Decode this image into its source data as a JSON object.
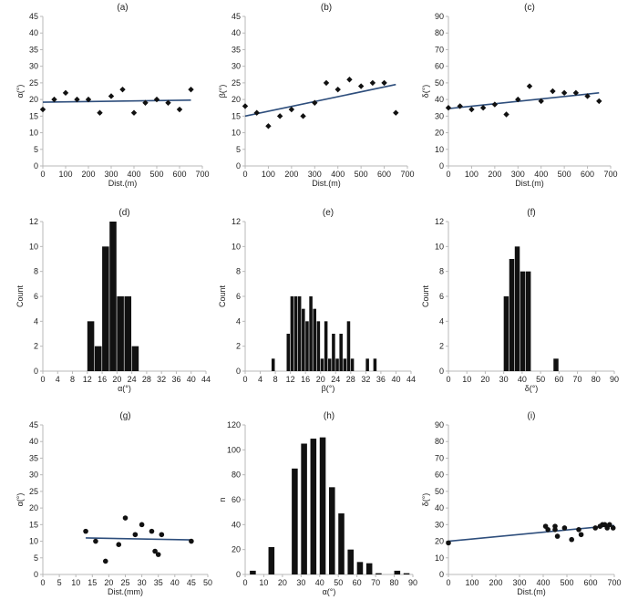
{
  "chart_data": [
    {
      "id": "a",
      "type": "scatter",
      "title": "(a)",
      "xlabel": "Dist.(m)",
      "ylabel": "α(°)",
      "xlim": [
        0,
        700
      ],
      "ylim": [
        0,
        45
      ],
      "xticks": [
        "0",
        "100",
        "200",
        "300",
        "400",
        "500",
        "600",
        "700"
      ],
      "yticks": [
        "0",
        "5",
        "10",
        "15",
        "20",
        "25",
        "30",
        "35",
        "40",
        "45"
      ],
      "marker": "diamond",
      "x": [
        0,
        50,
        100,
        150,
        200,
        250,
        300,
        350,
        400,
        450,
        500,
        550,
        600,
        650
      ],
      "y": [
        17,
        20,
        22,
        20,
        20,
        16,
        21,
        23,
        16,
        19,
        20,
        19,
        17,
        23
      ],
      "trend": [
        [
          0,
          19.2
        ],
        [
          650,
          19.8
        ]
      ]
    },
    {
      "id": "b",
      "type": "scatter",
      "title": "(b)",
      "xlabel": "Dist.(m)",
      "ylabel": "β(°)",
      "xlim": [
        0,
        700
      ],
      "ylim": [
        0,
        45
      ],
      "xticks": [
        "0",
        "100",
        "200",
        "300",
        "400",
        "500",
        "600",
        "700"
      ],
      "yticks": [
        "0",
        "5",
        "10",
        "15",
        "20",
        "25",
        "30",
        "35",
        "40",
        "45"
      ],
      "marker": "diamond",
      "x": [
        0,
        50,
        100,
        150,
        200,
        250,
        300,
        350,
        400,
        450,
        500,
        550,
        600,
        650
      ],
      "y": [
        18,
        16,
        12,
        15,
        17,
        15,
        19,
        25,
        23,
        26,
        24,
        25,
        25,
        16
      ],
      "trend": [
        [
          0,
          15
        ],
        [
          650,
          24.5
        ]
      ]
    },
    {
      "id": "c",
      "type": "scatter",
      "title": "(c)",
      "xlabel": "Dist.(m)",
      "ylabel": "δ(°)",
      "xlim": [
        0,
        700
      ],
      "ylim": [
        0,
        90
      ],
      "xticks": [
        "0",
        "100",
        "200",
        "300",
        "400",
        "500",
        "600",
        "700"
      ],
      "yticks": [
        "0",
        "10",
        "20",
        "30",
        "40",
        "50",
        "60",
        "70",
        "80",
        "90"
      ],
      "marker": "diamond",
      "x": [
        0,
        50,
        100,
        150,
        200,
        250,
        300,
        350,
        400,
        450,
        500,
        550,
        600,
        650
      ],
      "y": [
        35,
        36,
        34,
        35,
        37,
        31,
        40,
        48,
        39,
        45,
        44,
        44,
        42,
        39
      ],
      "trend": [
        [
          0,
          34.5
        ],
        [
          650,
          44
        ]
      ]
    },
    {
      "id": "d",
      "type": "bar",
      "title": "(d)",
      "xlabel": "α(°)",
      "ylabel": "Count",
      "xlim": [
        0,
        44
      ],
      "ylim": [
        0,
        12
      ],
      "xticks": [
        "0",
        "4",
        "8",
        "12",
        "16",
        "20",
        "24",
        "28",
        "32",
        "36",
        "40",
        "44"
      ],
      "yticks": [
        "0",
        "2",
        "4",
        "6",
        "8",
        "10",
        "12"
      ],
      "bin_width": 2,
      "bin_starts": [
        12,
        14,
        16,
        18,
        20,
        22,
        24
      ],
      "values": [
        4,
        2,
        10,
        12,
        6,
        6,
        2
      ]
    },
    {
      "id": "e",
      "type": "bar",
      "title": "(e)",
      "xlabel": "β(°)",
      "ylabel": "Count",
      "xlim": [
        0,
        44
      ],
      "ylim": [
        0,
        12
      ],
      "xticks": [
        "0",
        "4",
        "8",
        "12",
        "16",
        "20",
        "24",
        "28",
        "32",
        "36",
        "40",
        "44"
      ],
      "yticks": [
        "0",
        "2",
        "4",
        "6",
        "8",
        "10",
        "12"
      ],
      "bin_width": 1,
      "bin_starts": [
        7,
        11,
        12,
        13,
        14,
        15,
        16,
        17,
        18,
        19,
        20,
        21,
        22,
        23,
        24,
        25,
        26,
        27,
        28,
        29,
        32,
        33,
        34
      ],
      "values": [
        1,
        3,
        6,
        6,
        6,
        5,
        4,
        6,
        5,
        4,
        1,
        4,
        1,
        3,
        1,
        3,
        1,
        4,
        1,
        0,
        1,
        0,
        1
      ]
    },
    {
      "id": "f",
      "type": "bar",
      "title": "(f)",
      "xlabel": "δ(°)",
      "ylabel": "Count",
      "xlim": [
        0,
        90
      ],
      "ylim": [
        0,
        12
      ],
      "xticks": [
        "0",
        "10",
        "20",
        "30",
        "40",
        "50",
        "60",
        "70",
        "80",
        "90"
      ],
      "yticks": [
        "0",
        "2",
        "4",
        "6",
        "8",
        "10",
        "12"
      ],
      "bin_width": 3,
      "bin_starts": [
        30,
        33,
        36,
        39,
        42,
        57
      ],
      "values": [
        6,
        9,
        10,
        8,
        8,
        1
      ]
    },
    {
      "id": "g",
      "type": "scatter",
      "title": "(g)",
      "xlabel": "Dist.(mm)",
      "ylabel": "α(°)",
      "xlim": [
        0,
        50
      ],
      "ylim": [
        0,
        45
      ],
      "xticks": [
        "0",
        "5",
        "10",
        "15",
        "20",
        "25",
        "30",
        "35",
        "40",
        "45",
        "50"
      ],
      "yticks": [
        "0",
        "5",
        "10",
        "15",
        "20",
        "25",
        "30",
        "35",
        "40",
        "45"
      ],
      "marker": "circle",
      "x": [
        13,
        16,
        19,
        23,
        25,
        28,
        30,
        33,
        34,
        35,
        36,
        45
      ],
      "y": [
        13,
        10,
        4,
        9,
        17,
        12,
        15,
        13,
        7,
        6,
        12,
        10
      ],
      "trend": [
        [
          13,
          11
        ],
        [
          45,
          10.4
        ]
      ]
    },
    {
      "id": "h",
      "type": "bar",
      "title": "(h)",
      "xlabel": "α(°)",
      "ylabel": "n",
      "xlim": [
        0,
        90
      ],
      "ylim": [
        0,
        120
      ],
      "xticks": [
        "0",
        "10",
        "20",
        "30",
        "40",
        "50",
        "60",
        "70",
        "80",
        "90"
      ],
      "yticks": [
        "0",
        "20",
        "40",
        "60",
        "80",
        "100",
        "120"
      ],
      "bin_width": 3.5,
      "bin_starts": [
        2.5,
        12.5,
        25,
        30,
        35,
        40,
        45,
        50,
        55,
        60,
        65,
        70,
        80,
        85
      ],
      "values": [
        3,
        22,
        85,
        105,
        109,
        110,
        70,
        49,
        20,
        10,
        9,
        1,
        3,
        1
      ]
    },
    {
      "id": "i",
      "type": "scatter",
      "title": "(i)",
      "xlabel": "Dist.(m)",
      "ylabel": "δ(°)",
      "xlim": [
        0,
        700
      ],
      "ylim": [
        0,
        90
      ],
      "xticks": [
        "0",
        "100",
        "200",
        "300",
        "400",
        "500",
        "600",
        "700"
      ],
      "yticks": [
        "0",
        "10",
        "20",
        "30",
        "40",
        "50",
        "60",
        "70",
        "80",
        "90"
      ],
      "marker": "circle",
      "x": [
        0,
        410,
        420,
        450,
        450,
        460,
        490,
        520,
        550,
        560,
        620,
        640,
        650,
        660,
        670,
        680,
        695
      ],
      "y": [
        19,
        29,
        27,
        29,
        27,
        23,
        28,
        21,
        27,
        24,
        28,
        29,
        30,
        30,
        28,
        30,
        28
      ],
      "trend": [
        [
          0,
          20
        ],
        [
          700,
          29.5
        ]
      ]
    }
  ]
}
